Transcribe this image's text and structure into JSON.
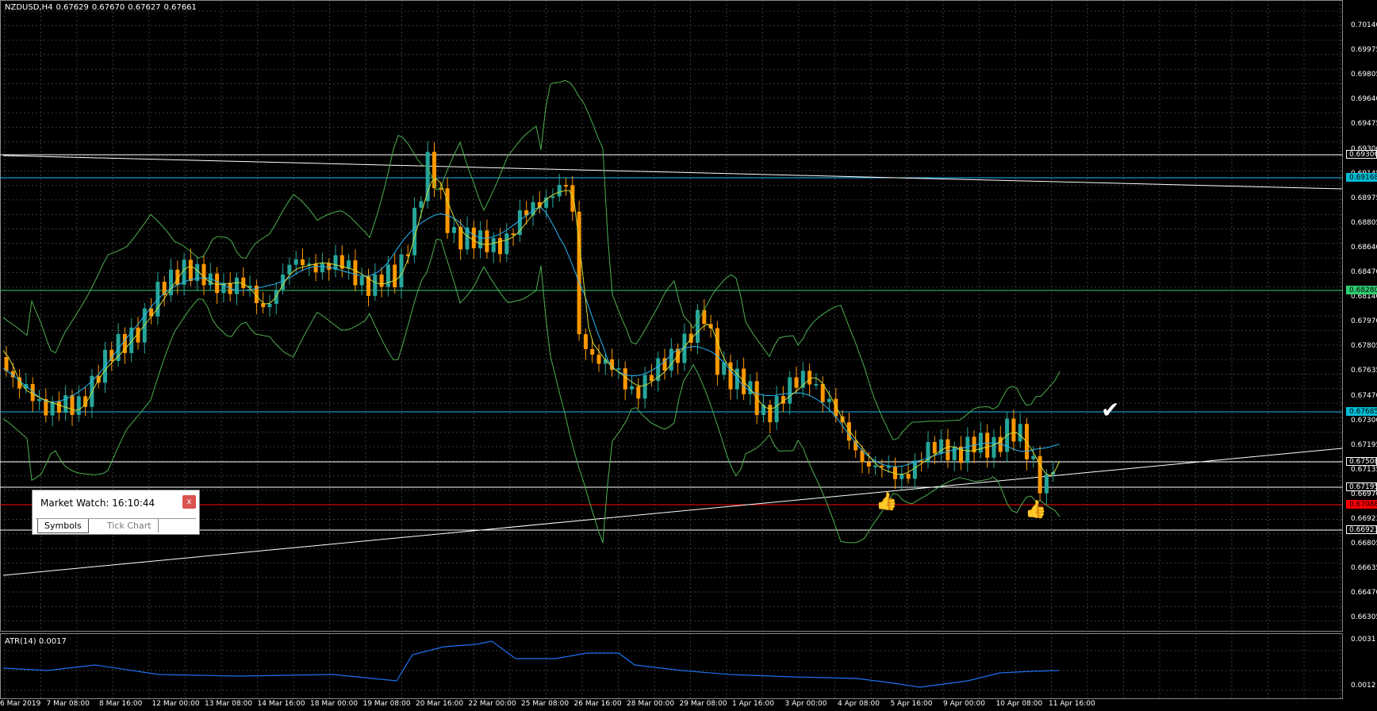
{
  "header": {
    "symbol": "NZDUSD,H4",
    "open": "0.67629",
    "high": "0.67670",
    "low": "0.67627",
    "close": "0.67661"
  },
  "atr": {
    "label": "ATR(14) 0.0017",
    "levels": [
      "0.0031",
      "0.0012"
    ]
  },
  "price_axis": [
    "0.70140",
    "0.69975",
    "0.69805",
    "0.69640",
    "0.69475",
    "0.69306",
    "0.69145",
    "0.68975",
    "0.68805",
    "0.68640",
    "0.68470",
    "0.68140",
    "0.67970",
    "0.67805",
    "0.67635",
    "0.67470",
    "0.67300",
    "0.67195",
    "0.67135",
    "0.66970",
    "0.66923",
    "0.66805",
    "0.66635",
    "0.66470",
    "0.66305"
  ],
  "price_tags": [
    {
      "text": "0.69306",
      "bg": "#000000",
      "fg": "#ffffff",
      "border": "#ffffff"
    },
    {
      "text": "0.69168",
      "bg": "#00bcd4",
      "fg": "#000000",
      "border": "#00bcd4"
    },
    {
      "text": "0.68280",
      "bg": "#2ecc71",
      "fg": "#000000",
      "border": "#2ecc71"
    },
    {
      "text": "0.67685",
      "bg": "#00bcd4",
      "fg": "#000000",
      "border": "#00bcd4"
    },
    {
      "text": "0.67508",
      "bg": "#000000",
      "fg": "#ffffff",
      "border": "#ffffff"
    },
    {
      "text": "0.67195",
      "bg": "#000000",
      "fg": "#ffffff",
      "border": "#ffffff"
    },
    {
      "text": "0.67088",
      "bg": "#ff0000",
      "fg": "#000000",
      "border": "#ff0000"
    },
    {
      "text": "0.66923",
      "bg": "#000000",
      "fg": "#ffffff",
      "border": "#ffffff"
    }
  ],
  "time_axis": [
    "6 Mar 2019",
    "7 Mar 08:00",
    "8 Mar 16:00",
    "12 Mar 00:00",
    "13 Mar 08:00",
    "14 Mar 16:00",
    "18 Mar 00:00",
    "19 Mar 08:00",
    "20 Mar 16:00",
    "22 Mar 00:00",
    "25 Mar 08:00",
    "26 Mar 16:00",
    "28 Mar 00:00",
    "29 Mar 08:00",
    "1 Apr 16:00",
    "3 Apr 00:00",
    "4 Apr 08:00",
    "5 Apr 16:00",
    "9 Apr 00:00",
    "10 Apr 08:00",
    "11 Apr 16:00"
  ],
  "market_watch": {
    "title": "Market Watch: 16:10:44",
    "close_label": "x",
    "tabs": [
      "Symbols",
      "Tick Chart"
    ]
  },
  "icons": [
    "checkmark-icon",
    "thumbs-up-icon"
  ],
  "colors": {
    "bull": "#26a69a",
    "bear": "#ff9800",
    "bollinger": "#4caf50",
    "ma_fast": "#cddc39",
    "ma_slow": "#29b6f6",
    "atr_line": "#1e6ff0",
    "grid": "#3a3a3a"
  }
}
